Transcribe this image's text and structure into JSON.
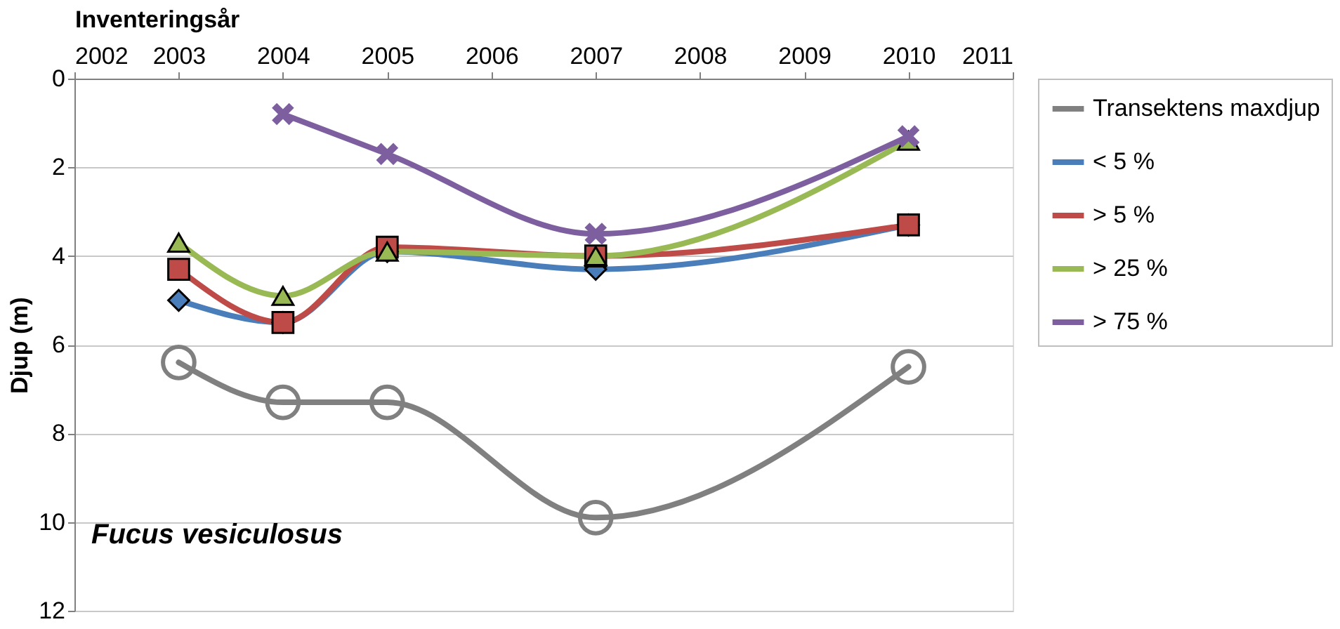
{
  "chart_data": {
    "type": "line",
    "xlabel": "Inventeringsår",
    "ylabel": "Djup (m)",
    "xlim": [
      2002,
      2011
    ],
    "xticks": [
      2002,
      2003,
      2004,
      2005,
      2006,
      2007,
      2008,
      2009,
      2010,
      2011
    ],
    "ylim": [
      12,
      0
    ],
    "yticks": [
      0,
      2,
      4,
      6,
      8,
      10,
      12
    ],
    "grid": "y",
    "legend": "right",
    "line_style": "solid",
    "annotations": [
      "Fucus vesiculosus"
    ],
    "series": [
      {
        "name": "Transektens maxdjup",
        "color": "#808080",
        "marker": "circle",
        "x": [
          2003,
          2004,
          2005,
          2007,
          2010
        ],
        "values": [
          6.4,
          7.3,
          7.3,
          9.9,
          6.5
        ]
      },
      {
        "name": "< 5 %",
        "color": "#4a7ebb",
        "marker": "diamond",
        "x": [
          2003,
          2004,
          2005,
          2007,
          2010
        ],
        "values": [
          5.0,
          5.5,
          3.9,
          4.3,
          3.3
        ]
      },
      {
        "name": "> 5 %",
        "color": "#be4b48",
        "marker": "square",
        "x": [
          2003,
          2004,
          2005,
          2007,
          2010
        ],
        "values": [
          4.3,
          5.5,
          3.8,
          4.0,
          3.3
        ]
      },
      {
        "name": "> 25 %",
        "color": "#98b954",
        "marker": "triangle",
        "x": [
          2003,
          2004,
          2005,
          2007,
          2010
        ],
        "values": [
          3.7,
          4.9,
          3.9,
          4.0,
          1.4
        ]
      },
      {
        "name": "> 75 %",
        "color": "#7d5fa0",
        "marker": "cross",
        "x": [
          2004,
          2005,
          2007,
          2010
        ],
        "values": [
          0.8,
          1.7,
          3.5,
          1.3
        ]
      }
    ]
  }
}
